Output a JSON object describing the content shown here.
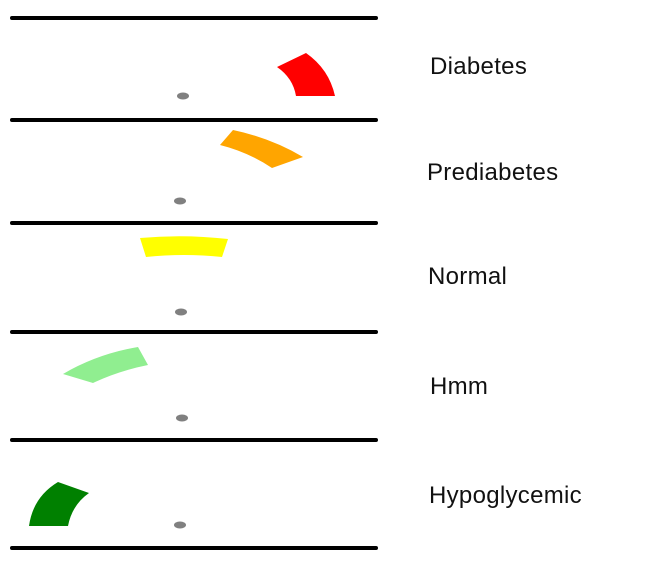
{
  "rows": [
    {
      "label": "Diabetes",
      "color": "#ff0000",
      "level": "high"
    },
    {
      "label": "Prediabetes",
      "color": "#ffa500",
      "level": "elevated"
    },
    {
      "label": "Normal",
      "color": "#ffff00",
      "level": "normal"
    },
    {
      "label": "Hmm",
      "color": "#90ee90",
      "level": "low-normal"
    },
    {
      "label": "Hypoglycemic",
      "color": "#008000",
      "level": "low"
    }
  ],
  "divider_color": "#000000",
  "pivot_color": "#808080"
}
